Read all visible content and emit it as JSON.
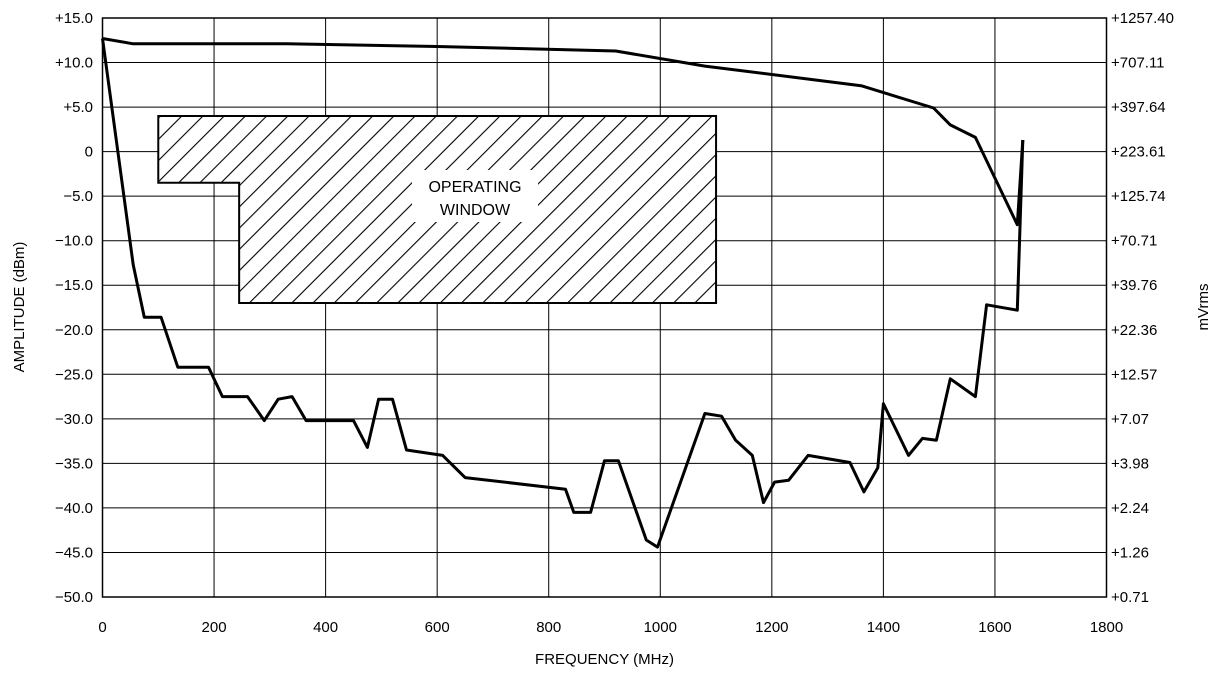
{
  "chart_data": {
    "type": "line",
    "xlabel": "FREQUENCY (MHz)",
    "ylabel": "AMPLITUDE (dBm)",
    "y2label": "mVrms",
    "xlim": [
      0,
      1800
    ],
    "ylim": [
      -50,
      15
    ],
    "grid": true,
    "x_ticks": [
      0,
      200,
      400,
      600,
      800,
      1000,
      1200,
      1400,
      1600,
      1800
    ],
    "x_tick_labels": [
      "0",
      "200",
      "400",
      "600",
      "800",
      "1000",
      "1200",
      "1400",
      "1600",
      "1800"
    ],
    "y_ticks": [
      15,
      10,
      5,
      0,
      -5,
      -10,
      -15,
      -20,
      -25,
      -30,
      -35,
      -40,
      -45,
      -50
    ],
    "y_tick_labels": [
      "+15.0",
      "+10.0",
      "+5.0",
      "0",
      "−5.0",
      "−10.0",
      "−15.0",
      "−20.0",
      "−25.0",
      "−30.0",
      "−35.0",
      "−40.0",
      "−45.0",
      "−50.0"
    ],
    "y2_tick_labels": [
      "+1257.40",
      "+707.11",
      "+397.64",
      "+223.61",
      "+125.74",
      "+70.71",
      "+39.76",
      "+22.36",
      "+12.57",
      "+7.07",
      "+3.98",
      "+2.24",
      "+1.26",
      "+0.71"
    ],
    "series": [
      {
        "x": [
          0,
          55,
          200,
          330,
          600,
          920,
          1080,
          1360,
          1490,
          1520,
          1565,
          1640,
          1650
        ],
        "y": [
          12.7,
          12.1,
          12.1,
          12.1,
          11.8,
          11.3,
          9.6,
          7.4,
          4.9,
          3.0,
          1.6,
          -8.2,
          1.3
        ]
      },
      {
        "x": [
          0,
          55,
          75,
          105,
          135,
          190,
          215,
          260,
          290,
          315,
          340,
          365,
          450,
          475,
          495,
          520,
          545,
          610,
          650,
          830,
          845,
          875,
          900,
          925,
          975,
          995,
          1080,
          1110,
          1135,
          1165,
          1185,
          1205,
          1230,
          1265,
          1340,
          1365,
          1390,
          1400,
          1445,
          1470,
          1495,
          1520,
          1565,
          1585,
          1640,
          1650
        ],
        "y": [
          12.7,
          -12.7,
          -18.6,
          -18.6,
          -24.2,
          -24.2,
          -27.5,
          -27.5,
          -30.2,
          -27.8,
          -27.5,
          -30.2,
          -30.2,
          -33.2,
          -27.8,
          -27.8,
          -33.5,
          -34.1,
          -36.6,
          -37.9,
          -40.5,
          -40.5,
          -34.7,
          -34.7,
          -43.6,
          -44.4,
          -29.4,
          -29.7,
          -32.4,
          -34.1,
          -39.4,
          -37.1,
          -36.9,
          -34.1,
          -34.9,
          -38.2,
          -35.5,
          -28.3,
          -34.1,
          -32.2,
          -32.4,
          -25.5,
          -27.5,
          -17.2,
          -17.8,
          1.3
        ]
      }
    ],
    "shaded_region": {
      "label_lines": [
        "OPERATING",
        "WINDOW"
      ],
      "points": [
        [
          100,
          4
        ],
        [
          1100,
          4
        ],
        [
          1100,
          -17
        ],
        [
          245,
          -17
        ],
        [
          245,
          -3.5
        ],
        [
          100,
          -3.5
        ]
      ]
    }
  }
}
